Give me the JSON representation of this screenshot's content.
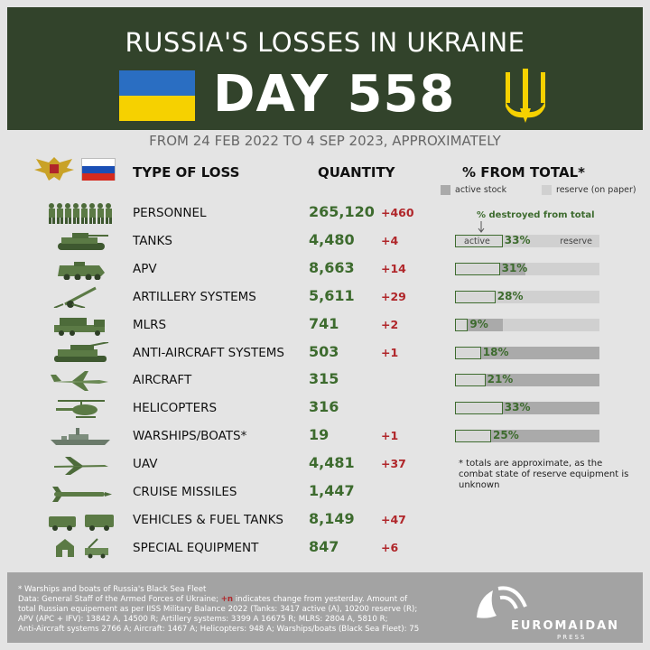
{
  "header": {
    "title": "RUSSIA'S LOSSES IN UKRAINE",
    "day": "DAY 558",
    "subtitle": "FROM 24 FEB 2022 TO 4 SEP 2023, APPROXIMATELY"
  },
  "columns": {
    "type": "TYPE OF LOSS",
    "quantity": "QUANTITY",
    "percent": "% FROM TOTAL*",
    "legend_active": "active stock",
    "legend_reserve": "reserve (on paper)"
  },
  "annotation": "% destroyed from total",
  "bar_labels": {
    "active": "active",
    "reserve": "reserve"
  },
  "rows": [
    {
      "icon": "soldiers-icon",
      "name": "PERSONNEL",
      "qty": "265,120",
      "delta": "+460"
    },
    {
      "icon": "tank-icon",
      "name": "TANKS",
      "qty": "4,480",
      "delta": "+4",
      "pct": "33%",
      "pct_value": 33,
      "active_share": 25
    },
    {
      "icon": "apv-icon",
      "name": "APV",
      "qty": "8,663",
      "delta": "+14",
      "pct": "31%",
      "pct_value": 31,
      "active_share": 49
    },
    {
      "icon": "artillery-icon",
      "name": "ARTILLERY SYSTEMS",
      "qty": "5,611",
      "delta": "+29",
      "pct": "28%",
      "pct_value": 28,
      "active_share": 17
    },
    {
      "icon": "mlrs-icon",
      "name": "MLRS",
      "qty": "741",
      "delta": "+2",
      "pct": "9%",
      "pct_value": 9,
      "active_share": 33
    },
    {
      "icon": "anti-aircraft-icon",
      "name": "ANTI-AIRCRAFT SYSTEMS",
      "qty": "503",
      "delta": "+1",
      "pct": "18%",
      "pct_value": 18,
      "active_share": 100
    },
    {
      "icon": "aircraft-icon",
      "name": "AIRCRAFT",
      "qty": "315",
      "delta": "",
      "pct": "21%",
      "pct_value": 21,
      "active_share": 100
    },
    {
      "icon": "helicopter-icon",
      "name": "HELICOPTERS",
      "qty": "316",
      "delta": "",
      "pct": "33%",
      "pct_value": 33,
      "active_share": 100
    },
    {
      "icon": "warship-icon",
      "name": "WARSHIPS/BOATS*",
      "qty": "19",
      "delta": "+1",
      "pct": "25%",
      "pct_value": 25,
      "active_share": 100
    },
    {
      "icon": "uav-icon",
      "name": "UAV",
      "qty": "4,481",
      "delta": "+37"
    },
    {
      "icon": "cruise-missile-icon",
      "name": "CRUISE MISSILES",
      "qty": "1,447",
      "delta": ""
    },
    {
      "icon": "vehicles-icon",
      "name": "VEHICLES & FUEL TANKS",
      "qty": "8,149",
      "delta": "+47"
    },
    {
      "icon": "special-equipment-icon",
      "name": "SPECIAL EQUIPMENT",
      "qty": "847",
      "delta": "+6"
    }
  ],
  "note": "* totals are approximate, as the combat state of reserve equipment is unknown",
  "footer": {
    "line1": "* Warships and boats of Russia's Black Sea Fleet",
    "line2a": "Data: General Staff of the Armed Forces of Ukraine; ",
    "line2red": "+n",
    "line2b": " indicates change from yesterday. Amount of",
    "line3": "total Russian equipement as per IISS Military Balance 2022 (Tanks: 3417 active (A), 10200 reserve (R);",
    "line4": "APV (APC + IFV): 13842 A, 14500 R; Artillery systems: 3399 A 16675 R; MLRS: 2804 A, 5810 R;",
    "line5": "Anti-Aircraft systems 2766 A; Aircraft: 1467 A; Helicopters: 948 A; Warships/boats (Black Sea Fleet): 75",
    "brand": "EUROMAIDAN",
    "brand_sub": "PRESS"
  },
  "colors": {
    "header_bg": "#32432b",
    "green": "#3d6b2e",
    "red": "#b0262a",
    "active": "#aaaaaa",
    "reserve": "#d0d0d0",
    "flag_blue": "#2a6ec2",
    "flag_yellow": "#f6d100"
  }
}
